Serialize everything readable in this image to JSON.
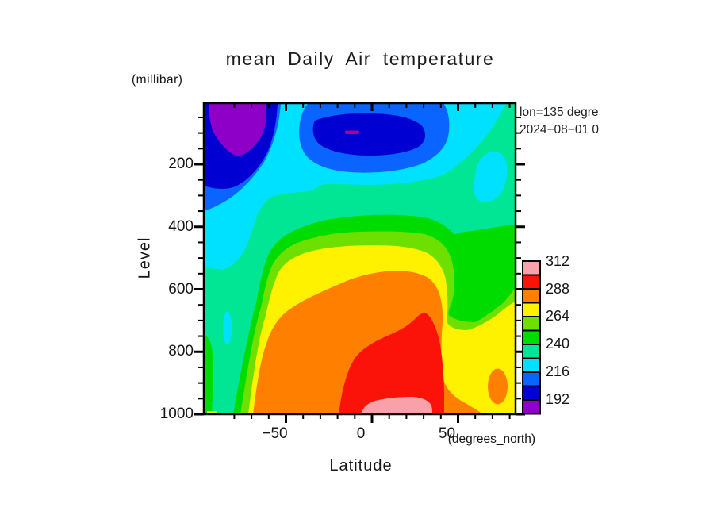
{
  "chart": {
    "title": "mean Daily Air temperature",
    "y_axis_unit": "(millibar)",
    "y_axis_label": "Level",
    "x_axis_label": "Latitude",
    "x_axis_unit": "(degrees_north)",
    "annotation_line1": "lon=135 degre",
    "annotation_line2": "2024−08−01 0"
  },
  "axes": {
    "x_tick_labels": [
      "−50",
      "0",
      "50"
    ],
    "x_tick_values": [
      -50,
      0,
      50
    ],
    "y_tick_labels": [
      "200",
      "400",
      "600",
      "800",
      "1000"
    ],
    "y_tick_values": [
      200,
      400,
      600,
      800,
      1000
    ]
  },
  "colorbar": {
    "labels": [
      "312",
      "288",
      "264",
      "240",
      "216",
      "192"
    ],
    "cell_colors_top_to_bottom": [
      "#F9A1AB",
      "#FB1209",
      "#FF8000",
      "#FFF200",
      "#6EE000",
      "#00DC00",
      "#00E695",
      "#00E0FF",
      "#0A64FF",
      "#0000D2",
      "#8E00C8"
    ]
  },
  "chart_data": {
    "type": "heatmap",
    "subtype": "filled-contour",
    "title": "mean Daily Air temperature",
    "xlabel": "Latitude (degrees_north)",
    "ylabel": "Level (millibar)",
    "x_range": [
      -90,
      90
    ],
    "y_range_top_to_bottom": [
      5,
      1000
    ],
    "y_axis_inverted": true,
    "contour_interval": 12,
    "levels": [
      180,
      192,
      204,
      216,
      228,
      240,
      252,
      264,
      276,
      288,
      300,
      312
    ],
    "bands": [
      {
        "min": 180,
        "max": 192,
        "color": "#8E00C8"
      },
      {
        "min": 192,
        "max": 204,
        "color": "#0000D2"
      },
      {
        "min": 204,
        "max": 216,
        "color": "#0A64FF"
      },
      {
        "min": 216,
        "max": 228,
        "color": "#00E0FF"
      },
      {
        "min": 228,
        "max": 240,
        "color": "#00E695"
      },
      {
        "min": 240,
        "max": 252,
        "color": "#00DC00"
      },
      {
        "min": 252,
        "max": 264,
        "color": "#6EE000"
      },
      {
        "min": 264,
        "max": 276,
        "color": "#FFF200"
      },
      {
        "min": 276,
        "max": 288,
        "color": "#FF8000"
      },
      {
        "min": 288,
        "max": 300,
        "color": "#FB1209"
      },
      {
        "min": 300,
        "max": 312,
        "color": "#F9A1AB"
      }
    ],
    "features": [
      "South-polar upper-level cold pool below 192 with purple core (<180-192) near lat -90..-60, levels ~10-150 mb",
      "Tropical tropopause cold band 192-204 centered lat -25..35 near 50-150 mb with tiny innermost spot (magenta dash) near lat 0, ~100 mb",
      "Cyan/mint (204-240) bands through mid-troposphere, dipping poleward on both sides",
      "Warm surface maximum 288-300 over lat ~-10..45 below ~700 mb, with 300-312 (pink) patch near 1000 mb at lat ~0..25",
      "Cold Antarctic column at far left: mint/cyan/green stripes reaching the surface",
      "Secondary small 276-288 (orange) blob near lat ~75, ~850-950 mb; notch of cooler air near lat ~60"
    ],
    "legend_position": "right",
    "grid": false
  }
}
